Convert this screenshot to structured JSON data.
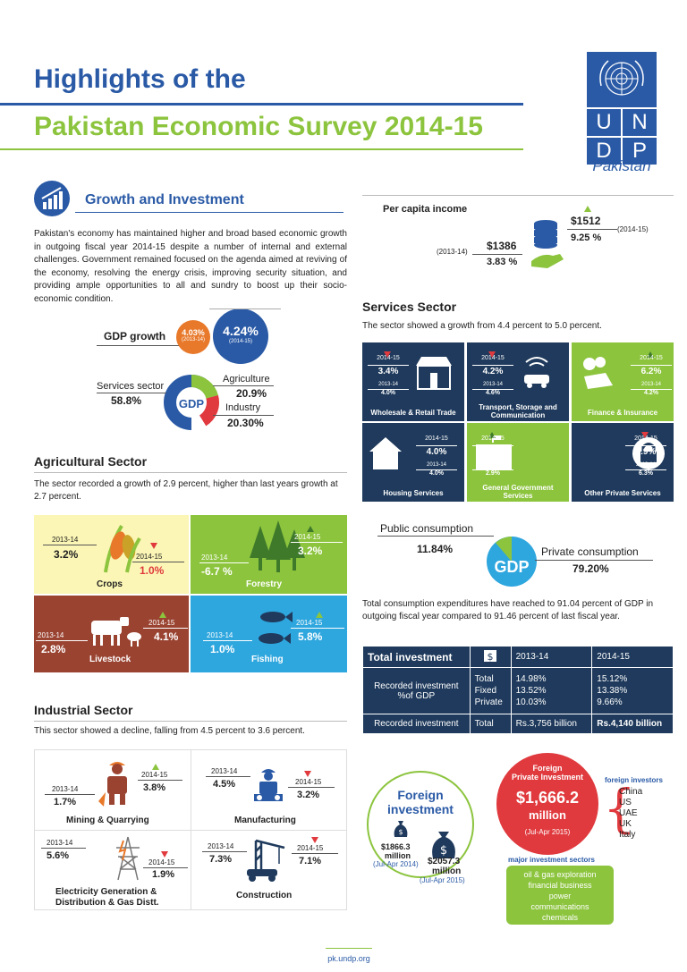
{
  "header": {
    "title1": "Highlights of the",
    "title2": "Pakistan Economic Survey 2014-15",
    "logo_letters": [
      "U",
      "N",
      "D",
      "P"
    ],
    "logo_country": "Pakistan"
  },
  "growth": {
    "heading": "Growth and Investment",
    "body": "Pakistan's economy has maintained higher and broad based economic growth in outgoing fiscal year 2014-15 despite a number of internal and external challenges. Government remained focused on the agenda aimed at reviving of the economy, resolving the energy crisis, improving security situation, and providing ample opportunities to all and sundry to boost up their socio-economic condition.",
    "gdp_growth_label": "GDP growth",
    "gdp_prev": "4.03%",
    "gdp_prev_year": "(2013-14)",
    "gdp_cur": "4.24%",
    "gdp_cur_year": "(2014-15)",
    "services_label": "Services sector",
    "services_val": "58.8%",
    "agri_label": "Agriculture",
    "agri_val": "20.9%",
    "industry_label": "Industry",
    "industry_val": "20.30%",
    "gdp_center": "GDP"
  },
  "per_capita": {
    "label": "Per capita income",
    "prev_year": "(2013-14)",
    "prev_amount": "$1386",
    "prev_pct": "3.83 %",
    "cur_amount": "$1512",
    "cur_pct": "9.25 %",
    "cur_year": "(2014-15)"
  },
  "services": {
    "heading": "Services Sector",
    "intro": "The sector showed a growth from 4.4 percent to 5.0 percent.",
    "cards": [
      {
        "name": "Wholesale & Retail Trade",
        "y1": "2014-15",
        "v1": "3.4%",
        "y0": "2013-14",
        "v0": "4.0%",
        "dir": "down"
      },
      {
        "name": "Transport, Storage and Communication",
        "y1": "2014-15",
        "v1": "4.2%",
        "y0": "2013-14",
        "v0": "4.6%",
        "dir": "down"
      },
      {
        "name": "Finance & Insurance",
        "y1": "2014-15",
        "v1": "6.2%",
        "y0": "2013-14",
        "v0": "4.2%",
        "dir": "up"
      },
      {
        "name": "Housing Services",
        "y1": "2014-15",
        "v1": "4.0%",
        "y0": "2013-14",
        "v0": "4.0%",
        "dir": "none"
      },
      {
        "name": "General Government Services",
        "y1": "2014-15",
        "v1": "9.4%",
        "y0": "2013-14",
        "v0": "2.9%",
        "dir": "up"
      },
      {
        "name": "Other Private Services",
        "y1": "2014-15",
        "v1": "5.9%",
        "y0": "2013-14",
        "v0": "6.3%",
        "dir": "down"
      }
    ]
  },
  "consumption": {
    "public_label": "Public consumption",
    "public_val": "11.84%",
    "private_label": "Private consumption",
    "private_val": "79.20%",
    "gdp": "GDP",
    "text": "Total consumption expenditures have reached to 91.04 percent of GDP in outgoing fiscal year compared to 91.46 percent of last fiscal year."
  },
  "investment": {
    "title": "Total investment",
    "col1": "2013-14",
    "col2": "2014-15",
    "row1_label": "Recorded investment %of GDP",
    "row1_sub": [
      "Total",
      "Fixed",
      "Private"
    ],
    "row1_c1": [
      "14.98%",
      "13.52%",
      "10.03%"
    ],
    "row1_c2": [
      "15.12%",
      "13.38%",
      "9.66%"
    ],
    "row2_label": "Recorded investment",
    "row2_sub": "Total",
    "row2_c1": "Rs.3,756 billion",
    "row2_c2": "Rs.4,140  billion"
  },
  "agri": {
    "heading": "Agricultural Sector",
    "intro": "The sector recorded a growth of 2.9 percent, higher than last years growth at 2.7 percent.",
    "crops": {
      "name": "Crops",
      "y0": "2013-14",
      "v0": "3.2%",
      "y1": "2014-15",
      "v1": "1.0%"
    },
    "forestry": {
      "name": "Forestry",
      "y0": "2013-14",
      "v0": "-6.7 %",
      "y1": "2014-15",
      "v1": "3.2%"
    },
    "livestock": {
      "name": "Livestock",
      "y0": "2013-14",
      "v0": "2.8%",
      "y1": "2014-15",
      "v1": "4.1%"
    },
    "fishing": {
      "name": "Fishing",
      "y0": "2013-14",
      "v0": "1.0%",
      "y1": "2014-15",
      "v1": "5.8%"
    }
  },
  "industry": {
    "heading": "Industrial Sector",
    "intro": "This sector showed a decline, falling from 4.5 percent to 3.6 percent.",
    "mining": {
      "name": "Mining & Quarrying",
      "y0": "2013-14",
      "v0": "1.7%",
      "y1": "2014-15",
      "v1": "3.8%"
    },
    "manufacturing": {
      "name": "Manufacturing",
      "y0": "2013-14",
      "v0": "4.5%",
      "y1": "2014-15",
      "v1": "3.2%"
    },
    "electricity": {
      "name1": "Electricity Generation &",
      "name2": "Distribution & Gas Distt.",
      "y0": "2013-14",
      "v0": "5.6%",
      "y1": "2014-15",
      "v1": "1.9%"
    },
    "construction": {
      "name": "Construction",
      "y0": "2013-14",
      "v0": "7.3%",
      "y1": "2014-15",
      "v1": "7.1%"
    }
  },
  "foreign": {
    "title1": "Foreign",
    "title2": "investment",
    "a1": "$1866.3",
    "a1b": "million",
    "a1p": "(Jul-Apr 2014)",
    "a2": "$2057.3",
    "a2b": "million",
    "a2p": "(Jul-Apr 2015)",
    "fpi_title1": "Foreign",
    "fpi_title2": "Private Investment",
    "fpi_amount": "$1,666.2",
    "fpi_million": "million",
    "fpi_period": "(Jul-Apr 2015)",
    "investors_label": "foreign investors",
    "investors": [
      "China",
      "US",
      "UAE",
      "UK",
      "Italy"
    ],
    "sectors_label": "major investment sectors",
    "sectors": [
      "oil & gas exploration",
      "financial business",
      "power",
      "communications",
      "chemicals"
    ]
  },
  "footer": {
    "url": "pk.undp.org"
  },
  "colors": {
    "blue": "#2a5aa6",
    "green": "#8cc43e",
    "navy": "#1f3a5c",
    "red": "#e03a3e",
    "orange": "#e8792b",
    "yellow": "#fbf6b5",
    "brown": "#9a4331",
    "sky": "#2ea6de"
  }
}
